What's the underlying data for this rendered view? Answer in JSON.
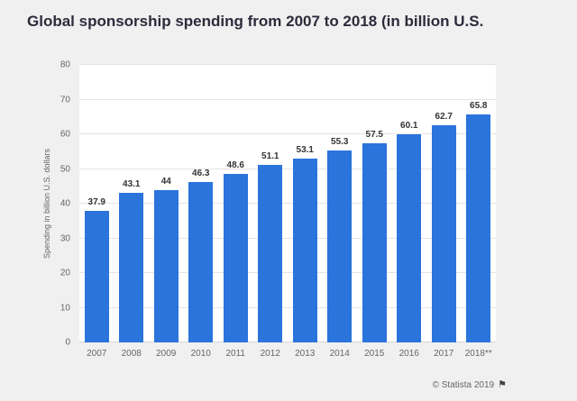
{
  "page": {
    "title": "Global sponsorship spending from 2007 to 2018 (in billion U.S.",
    "footer_text": "© Statista 2019"
  },
  "icons": {
    "flag": "⚑"
  },
  "colors": {
    "bar": "#2a74dc",
    "background": "#f0f0f0",
    "plot_background": "#ffffff",
    "gridline": "#e4e4e4",
    "title_text": "#2b2b3b",
    "axis_text": "#666666",
    "value_label_text": "#333333"
  },
  "chart_data": {
    "type": "bar",
    "title": "Global sponsorship spending from 2007 to 2018 (in billion U.S.",
    "categories": [
      "2007",
      "2008",
      "2009",
      "2010",
      "2011",
      "2012",
      "2013",
      "2014",
      "2015",
      "2016",
      "2017",
      "2018**"
    ],
    "values": [
      37.9,
      43.1,
      44,
      46.3,
      48.6,
      51.1,
      53.1,
      55.3,
      57.5,
      60.1,
      62.7,
      65.8
    ],
    "value_labels": [
      "37.9",
      "43.1",
      "44",
      "46.3",
      "48.6",
      "51.1",
      "53.1",
      "55.3",
      "57.5",
      "60.1",
      "62.7",
      "65.8"
    ],
    "xlabel": "",
    "ylabel": "Spending in billion U.S. dollars",
    "ylim": [
      0,
      80
    ],
    "yticks": [
      0,
      10,
      20,
      30,
      40,
      50,
      60,
      70,
      80
    ],
    "grid": true,
    "legend": false
  }
}
